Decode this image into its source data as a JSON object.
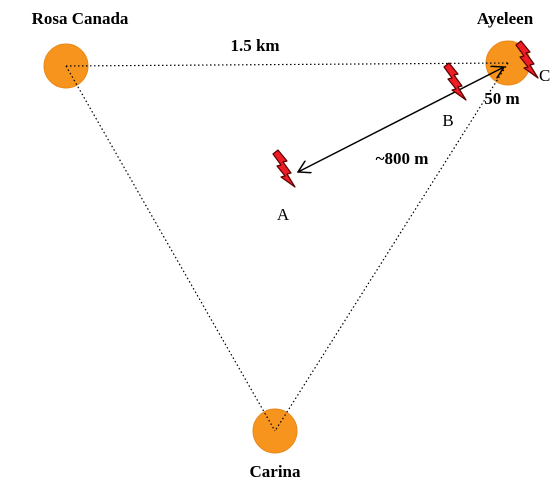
{
  "nodes": [
    {
      "label": "Rosa Canada"
    },
    {
      "label": "Ayeleen"
    },
    {
      "label": "Carina"
    }
  ],
  "distances": [
    "1.5 km",
    "50 m",
    "~800 m"
  ],
  "points": [
    "A",
    "B",
    "C"
  ]
}
